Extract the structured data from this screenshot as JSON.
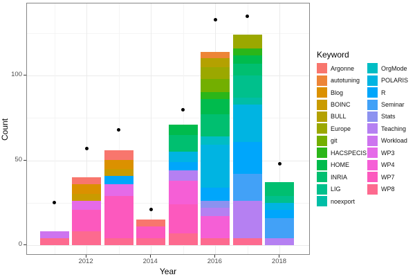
{
  "chart_data": {
    "type": "bar",
    "subtype": "stacked-bar-with-points",
    "title": "",
    "xlabel": "Year",
    "ylabel": "Count",
    "legend_title": "Keyword",
    "legend_position": "right",
    "grid": true,
    "x_major_ticks": [
      2012,
      2014,
      2016,
      2018
    ],
    "x_minor_gridlines": [
      2011,
      2013,
      2015,
      2017
    ],
    "y_major_ticks": [
      0,
      50,
      100
    ],
    "y_minor_gridlines": [
      25,
      75,
      125
    ],
    "xlim": [
      2010.2,
      2018.9
    ],
    "ylim": [
      -6,
      143
    ],
    "keywords": [
      {
        "name": "Argonne",
        "color": "#F8766D"
      },
      {
        "name": "autotuning",
        "color": "#ED8537"
      },
      {
        "name": "Blog",
        "color": "#DB9100"
      },
      {
        "name": "BOINC",
        "color": "#C99B00"
      },
      {
        "name": "BULL",
        "color": "#B4A100"
      },
      {
        "name": "Europe",
        "color": "#9BA800"
      },
      {
        "name": "git",
        "color": "#73AF00"
      },
      {
        "name": "HACSPECIS",
        "color": "#2BB619"
      },
      {
        "name": "HOME",
        "color": "#00BB4D"
      },
      {
        "name": "INRIA",
        "color": "#00BF70"
      },
      {
        "name": "LIG",
        "color": "#00C08C"
      },
      {
        "name": "noexport",
        "color": "#00BEA6"
      },
      {
        "name": "OrgMode",
        "color": "#00BDC4"
      },
      {
        "name": "POLARIS",
        "color": "#00B4E2"
      },
      {
        "name": "R",
        "color": "#00A6FB"
      },
      {
        "name": "Seminar",
        "color": "#42A1F7"
      },
      {
        "name": "Stats",
        "color": "#8C92F0"
      },
      {
        "name": "Teaching",
        "color": "#B580F2"
      },
      {
        "name": "Workload",
        "color": "#CD74EF"
      },
      {
        "name": "WP3",
        "color": "#E56AE8"
      },
      {
        "name": "WP4",
        "color": "#F55FD6"
      },
      {
        "name": "WP7",
        "color": "#FC59BE"
      },
      {
        "name": "WP8",
        "color": "#FD6A8F"
      }
    ],
    "bars": [
      {
        "year": 2011,
        "total": 8,
        "segments_top_to_bottom": [
          {
            "keyword": "Workload",
            "value": 4
          },
          {
            "keyword": "WP8",
            "value": 4
          }
        ]
      },
      {
        "year": 2012,
        "total": 40,
        "segments_top_to_bottom": [
          {
            "keyword": "Argonne",
            "value": 4
          },
          {
            "keyword": "Blog",
            "value": 6
          },
          {
            "keyword": "BOINC",
            "value": 4
          },
          {
            "keyword": "WP3",
            "value": 5
          },
          {
            "keyword": "WP7",
            "value": 13
          },
          {
            "keyword": "WP8",
            "value": 8
          }
        ]
      },
      {
        "year": 2013,
        "total": 56,
        "segments_top_to_bottom": [
          {
            "keyword": "Argonne",
            "value": 6
          },
          {
            "keyword": "Blog",
            "value": 5
          },
          {
            "keyword": "BOINC",
            "value": 4
          },
          {
            "keyword": "R",
            "value": 5
          },
          {
            "keyword": "WP3",
            "value": 7
          },
          {
            "keyword": "WP7",
            "value": 25
          },
          {
            "keyword": "WP8",
            "value": 4
          }
        ]
      },
      {
        "year": 2014,
        "total": 15,
        "segments_top_to_bottom": [
          {
            "keyword": "Argonne",
            "value": 4
          },
          {
            "keyword": "WP7",
            "value": 7
          },
          {
            "keyword": "WP8",
            "value": 4
          }
        ]
      },
      {
        "year": 2015,
        "total": 71,
        "segments_top_to_bottom": [
          {
            "keyword": "HOME",
            "value": 6
          },
          {
            "keyword": "INRIA",
            "value": 10
          },
          {
            "keyword": "POLARIS",
            "value": 6
          },
          {
            "keyword": "R",
            "value": 5
          },
          {
            "keyword": "Teaching",
            "value": 6
          },
          {
            "keyword": "WP4",
            "value": 14
          },
          {
            "keyword": "WP7",
            "value": 17
          },
          {
            "keyword": "WP8",
            "value": 7
          }
        ]
      },
      {
        "year": 2016,
        "total": 114,
        "segments_top_to_bottom": [
          {
            "keyword": "autotuning",
            "value": 4
          },
          {
            "keyword": "BULL",
            "value": 5
          },
          {
            "keyword": "Europe",
            "value": 7
          },
          {
            "keyword": "git",
            "value": 8
          },
          {
            "keyword": "HACSPECIS",
            "value": 4
          },
          {
            "keyword": "HOME",
            "value": 9
          },
          {
            "keyword": "INRIA",
            "value": 13
          },
          {
            "keyword": "OrgMode",
            "value": 5
          },
          {
            "keyword": "POLARIS",
            "value": 25
          },
          {
            "keyword": "R",
            "value": 8
          },
          {
            "keyword": "Stats",
            "value": 4
          },
          {
            "keyword": "Teaching",
            "value": 5
          },
          {
            "keyword": "WP4",
            "value": 13
          },
          {
            "keyword": "WP8",
            "value": 4
          }
        ]
      },
      {
        "year": 2017,
        "total": 124,
        "segments_top_to_bottom": [
          {
            "keyword": "Europe",
            "value": 8
          },
          {
            "keyword": "HACSPECIS",
            "value": 4
          },
          {
            "keyword": "HOME",
            "value": 5
          },
          {
            "keyword": "INRIA",
            "value": 7
          },
          {
            "keyword": "LIG",
            "value": 13
          },
          {
            "keyword": "noexport",
            "value": 4
          },
          {
            "keyword": "POLARIS",
            "value": 22
          },
          {
            "keyword": "R",
            "value": 19
          },
          {
            "keyword": "Seminar",
            "value": 16
          },
          {
            "keyword": "Teaching",
            "value": 22
          },
          {
            "keyword": "WP8",
            "value": 4
          }
        ]
      },
      {
        "year": 2018,
        "total": 37,
        "segments_top_to_bottom": [
          {
            "keyword": "INRIA",
            "value": 8
          },
          {
            "keyword": "LIG",
            "value": 4
          },
          {
            "keyword": "POLARIS",
            "value": 4
          },
          {
            "keyword": "R",
            "value": 5
          },
          {
            "keyword": "Seminar",
            "value": 12
          },
          {
            "keyword": "Teaching",
            "value": 4
          }
        ]
      }
    ],
    "points": [
      {
        "year": 2011,
        "value": 25
      },
      {
        "year": 2012,
        "value": 57
      },
      {
        "year": 2013,
        "value": 68
      },
      {
        "year": 2014,
        "value": 21
      },
      {
        "year": 2015,
        "value": 80
      },
      {
        "year": 2016,
        "value": 133
      },
      {
        "year": 2017,
        "value": 135
      },
      {
        "year": 2018,
        "value": 48
      }
    ],
    "colors": {
      "point": "#000000",
      "grid_major": "#EBEBEB",
      "grid_minor": "#F4F4F4",
      "panel_border": "#858585",
      "tick_label": "#4D4D4D",
      "axis_title": "#000000",
      "background": "#FFFFFF"
    }
  }
}
